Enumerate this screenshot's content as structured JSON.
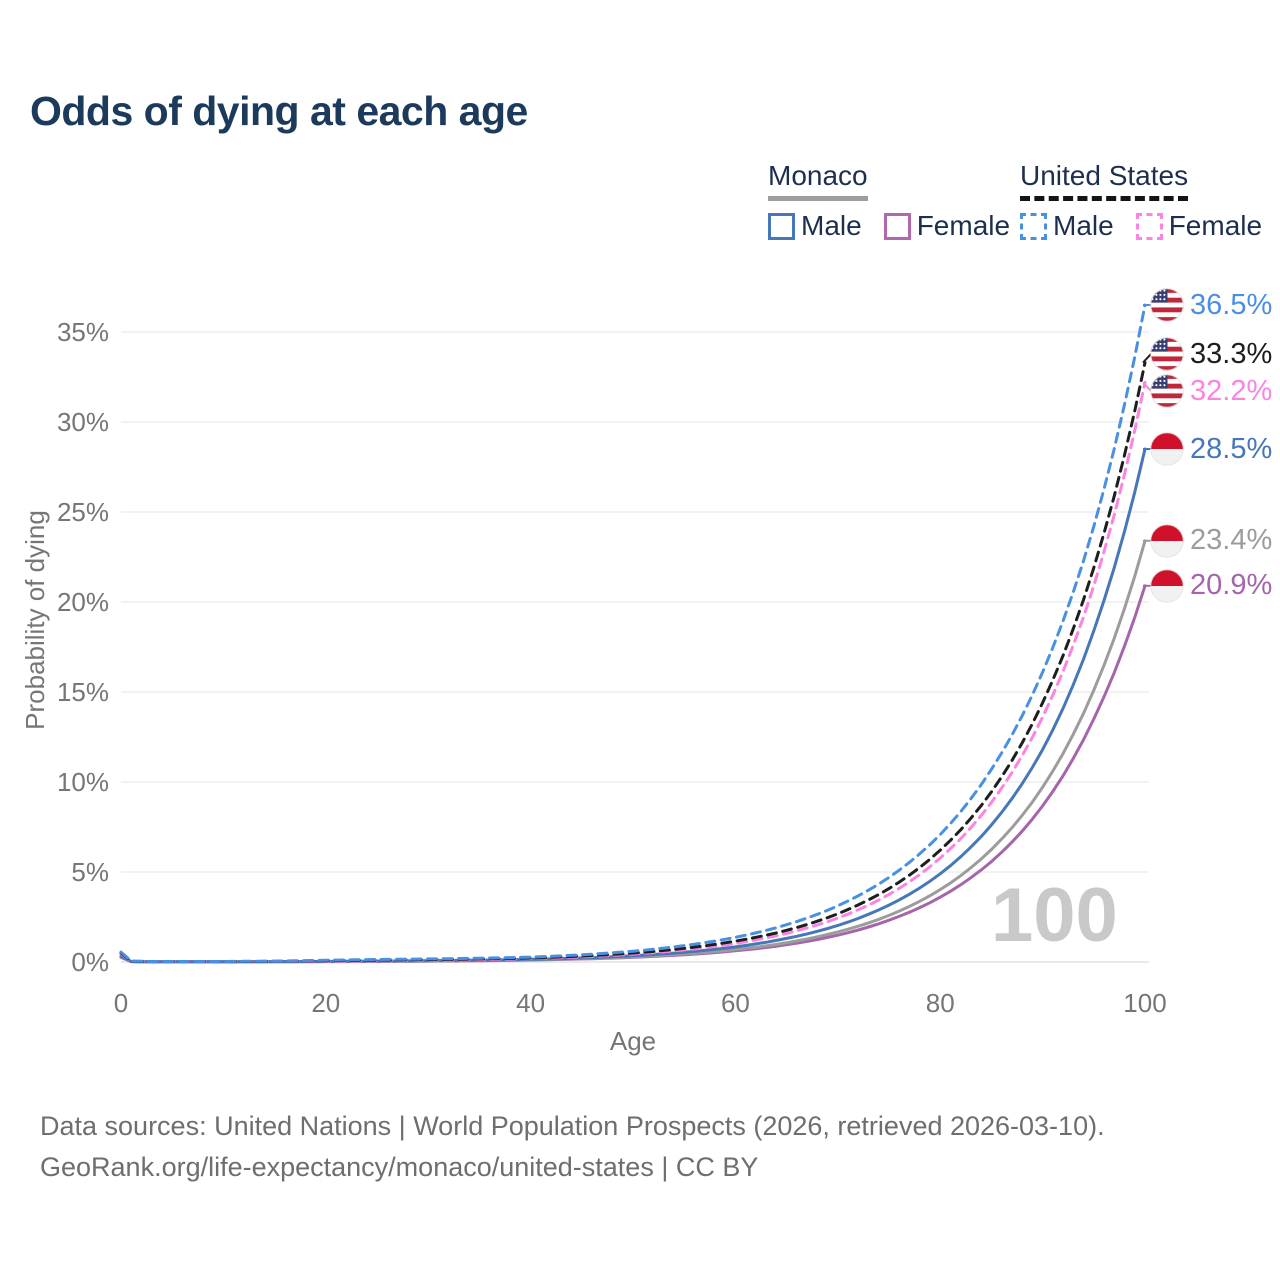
{
  "title": "Odds of dying at each age",
  "legend": {
    "monaco": {
      "label": "Monaco",
      "male": "Male",
      "female": "Female",
      "male_color": "#4677b8",
      "female_color": "#b168ae",
      "underline_color": "#9e9e9e"
    },
    "united_states": {
      "label": "United States",
      "male": "Male",
      "female": "Female",
      "male_color": "#4a90e2",
      "female_color": "#fb84e1",
      "underline_color": "#141414"
    }
  },
  "watermark": "100",
  "source": {
    "line1": "Data sources: United Nations | World Population Prospects (2026, retrieved 2026-03-10).",
    "line2": "GeoRank.org/life-expectancy/monaco/united-states | CC BY"
  },
  "chart_data": {
    "type": "line",
    "title": "Odds of dying at each age",
    "xlabel": "Age",
    "ylabel": "Probability of dying",
    "xlim": [
      0,
      100
    ],
    "ylim": [
      0,
      37.5
    ],
    "x_ticks": [
      0,
      20,
      40,
      60,
      80,
      100
    ],
    "y_ticks": [
      "0%",
      "5%",
      "10%",
      "15%",
      "20%",
      "25%",
      "30%",
      "35%"
    ],
    "grid": "horizontal",
    "legend_position": "top-right",
    "hovered_age": 100,
    "x": [
      0,
      1,
      3,
      5,
      10,
      15,
      20,
      25,
      30,
      35,
      40,
      45,
      50,
      55,
      60,
      65,
      70,
      75,
      80,
      85,
      90,
      95,
      100
    ],
    "series": [
      {
        "name": "United States Male",
        "country": "United States",
        "sex": "Male",
        "color": "#4a90e2",
        "dash": true,
        "flag": "us",
        "end_label": "36.5%",
        "end_value": 36.5,
        "values": [
          0.55,
          0.05,
          0.03,
          0.03,
          0.03,
          0.05,
          0.1,
          0.14,
          0.17,
          0.21,
          0.27,
          0.4,
          0.6,
          0.91,
          1.37,
          2.07,
          3.12,
          4.7,
          7.08,
          10.7,
          16.1,
          24.2,
          36.5
        ]
      },
      {
        "name": "United States Both sexes",
        "country": "United States",
        "sex": "Both",
        "color": "#1e1e1e",
        "dash": true,
        "flag": "us",
        "end_label": "33.3%",
        "end_value": 33.3,
        "values": [
          0.5,
          0.04,
          0.02,
          0.02,
          0.02,
          0.04,
          0.07,
          0.1,
          0.13,
          0.17,
          0.22,
          0.33,
          0.5,
          0.76,
          1.16,
          1.76,
          2.68,
          4.08,
          6.21,
          9.45,
          14.4,
          21.9,
          33.3
        ]
      },
      {
        "name": "United States Female",
        "country": "United States",
        "sex": "Female",
        "color": "#fb84e1",
        "dash": true,
        "flag": "us",
        "end_label": "32.2%",
        "end_value": 32.2,
        "values": [
          0.45,
          0.04,
          0.02,
          0.02,
          0.02,
          0.03,
          0.04,
          0.06,
          0.09,
          0.13,
          0.19,
          0.28,
          0.44,
          0.67,
          1.03,
          1.59,
          2.44,
          3.75,
          5.77,
          8.86,
          13.6,
          20.9,
          32.2
        ]
      },
      {
        "name": "Monaco Male",
        "country": "Monaco",
        "sex": "Male",
        "color": "#4677b8",
        "dash": false,
        "flag": "monaco",
        "end_label": "28.5%",
        "end_value": 28.5,
        "values": [
          0.32,
          0.03,
          0.01,
          0.01,
          0.01,
          0.02,
          0.03,
          0.05,
          0.07,
          0.1,
          0.15,
          0.22,
          0.35,
          0.54,
          0.84,
          1.31,
          2.03,
          3.16,
          4.9,
          7.61,
          11.8,
          18.4,
          28.5
        ]
      },
      {
        "name": "Monaco Both sexes",
        "country": "Monaco",
        "sex": "Both",
        "color": "#9c9c9c",
        "dash": false,
        "flag": "monaco",
        "end_label": "23.4%",
        "end_value": 23.4,
        "values": [
          0.28,
          0.02,
          0.01,
          0.01,
          0.01,
          0.02,
          0.03,
          0.04,
          0.06,
          0.08,
          0.12,
          0.18,
          0.29,
          0.45,
          0.69,
          1.07,
          1.67,
          2.59,
          4.02,
          6.25,
          9.71,
          15.1,
          23.4
        ]
      },
      {
        "name": "Monaco Female",
        "country": "Monaco",
        "sex": "Female",
        "color": "#a565ab",
        "dash": false,
        "flag": "monaco",
        "end_label": "20.9%",
        "end_value": 20.9,
        "values": [
          0.25,
          0.02,
          0.01,
          0.01,
          0.01,
          0.01,
          0.02,
          0.03,
          0.05,
          0.07,
          0.11,
          0.17,
          0.26,
          0.4,
          0.62,
          0.96,
          1.49,
          2.32,
          3.6,
          5.58,
          8.67,
          13.5,
          20.9
        ]
      }
    ]
  }
}
